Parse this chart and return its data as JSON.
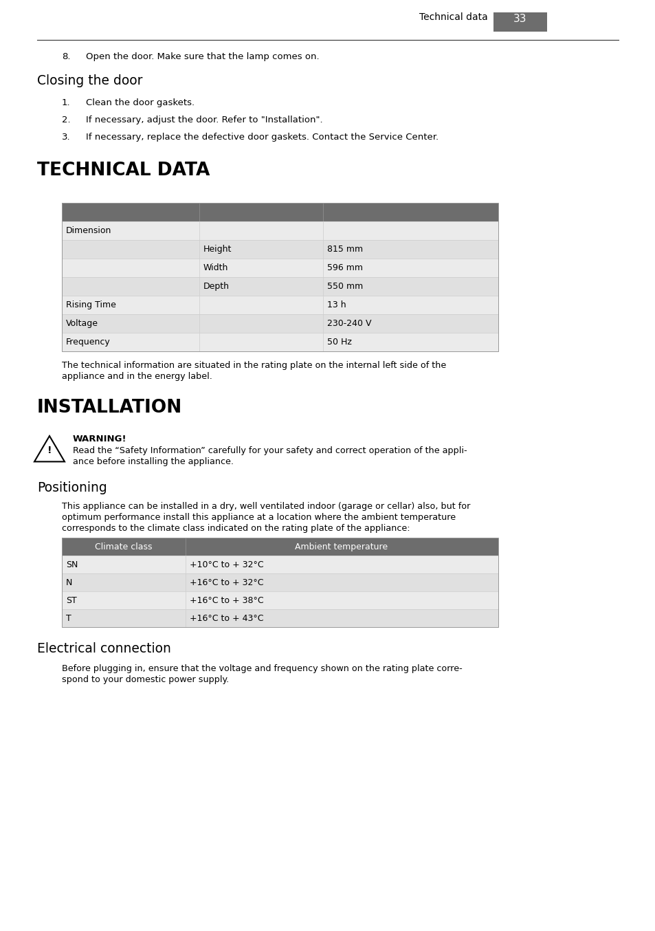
{
  "page_number": "33",
  "header_label": "Technical data",
  "bg_color": "#ffffff",
  "text_color": "#000000",
  "header_bg": "#6d6d6d",
  "header_text_color": "#ffffff",
  "row_light": "#e0e0e0",
  "row_lighter": "#ebebeb",
  "row_white": "#ffffff",
  "item8_text": "Open the door. Make sure that the lamp comes on.",
  "closing_door_title": "Closing the door",
  "closing_door_items": [
    "Clean the door gaskets.",
    "If necessary, adjust the door. Refer to \"Installation\".",
    "If necessary, replace the defective door gaskets. Contact the Service Center."
  ],
  "technical_data_title": "TECHNICAL DATA",
  "tech_table_rows": [
    [
      "Dimension",
      "",
      ""
    ],
    [
      "",
      "Height",
      "815 mm"
    ],
    [
      "",
      "Width",
      "596 mm"
    ],
    [
      "",
      "Depth",
      "550 mm"
    ],
    [
      "Rising Time",
      "",
      "13 h"
    ],
    [
      "Voltage",
      "",
      "230-240 V"
    ],
    [
      "Frequency",
      "",
      "50 Hz"
    ]
  ],
  "installation_title": "INSTALLATION",
  "warning_title": "WARNING!",
  "warn_line1": "Read the “Safety Information” carefully for your safety and correct operation of the appli-",
  "warn_line2": "ance before installing the appliance.",
  "positioning_title": "Positioning",
  "pos_line1": "This appliance can be installed in a dry, well ventilated indoor (garage or cellar) also, but for",
  "pos_line2": "optimum performance install this appliance at a location where the ambient temperature",
  "pos_line3": "corresponds to the climate class indicated on the rating plate of the appliance:",
  "climate_header": [
    "Climate class",
    "Ambient temperature"
  ],
  "climate_rows": [
    [
      "SN",
      "+10°C to + 32°C"
    ],
    [
      "N",
      "+16°C to + 32°C"
    ],
    [
      "ST",
      "+16°C to + 38°C"
    ],
    [
      "T",
      "+16°C to + 43°C"
    ]
  ],
  "electrical_title": "Electrical connection",
  "elec_line1": "Before plugging in, ensure that the voltage and frequency shown on the rating plate corre-",
  "elec_line2": "spond to your domestic power supply."
}
